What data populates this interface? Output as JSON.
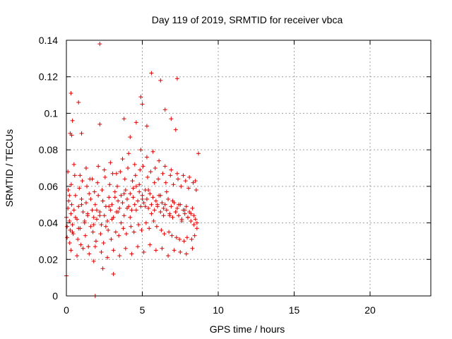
{
  "chart_data": {
    "type": "scatter",
    "title": "Day 119 of 2019, SRMTID for receiver vbca",
    "xlabel": "GPS time / hours",
    "ylabel": "SRMTID / TECUs",
    "xlim": [
      0,
      24
    ],
    "ylim": [
      0,
      0.14
    ],
    "xticks": [
      0,
      5,
      10,
      15,
      20
    ],
    "yticks": [
      0,
      0.02,
      0.04,
      0.06,
      0.08,
      0.1,
      0.12,
      0.14
    ],
    "xtick_labels": [
      "0",
      "5",
      "10",
      "15",
      "20"
    ],
    "ytick_labels": [
      "0",
      "0.02",
      "0.04",
      "0.06",
      "0.08",
      "0.1",
      "0.12",
      "0.14"
    ],
    "grid": true,
    "marker": "+",
    "color": "#e00000",
    "series": [
      {
        "name": "SRMTID",
        "x": [
          0.0,
          0.05,
          0.1,
          0.15,
          0.2,
          0.25,
          0.3,
          0.35,
          0.4,
          0.5,
          0.6,
          0.7,
          0.8,
          0.9,
          1.0,
          1.1,
          1.2,
          1.3,
          1.4,
          1.5,
          1.6,
          1.7,
          1.8,
          1.9,
          2.0,
          2.1,
          2.2,
          2.3,
          2.4,
          2.5,
          2.6,
          2.7,
          2.8,
          2.9,
          3.0,
          3.1,
          3.2,
          3.3,
          3.4,
          3.5,
          3.6,
          3.7,
          3.8,
          3.9,
          4.0,
          4.1,
          4.2,
          4.3,
          4.4,
          4.5,
          4.6,
          4.7,
          4.8,
          4.9,
          5.0,
          5.1,
          5.2,
          5.3,
          5.4,
          5.5,
          5.6,
          5.7,
          5.8,
          5.9,
          6.0,
          6.1,
          6.2,
          6.3,
          6.4,
          6.5,
          6.6,
          6.7,
          6.8,
          6.9,
          7.0,
          7.1,
          7.2,
          7.3,
          7.4,
          7.5,
          7.6,
          7.7,
          7.8,
          7.9,
          8.0,
          8.1,
          8.2,
          8.3,
          8.4,
          8.5,
          8.6,
          0.05,
          0.12,
          0.22,
          0.32,
          0.45,
          0.55,
          0.75,
          0.85,
          0.95,
          1.05,
          1.25,
          1.35,
          1.45,
          1.55,
          1.75,
          1.85,
          1.95,
          2.05,
          2.25,
          2.35,
          2.45,
          2.55,
          2.75,
          2.85,
          2.95,
          3.05,
          3.25,
          3.35,
          3.45,
          3.55,
          3.75,
          3.85,
          3.95,
          4.05,
          4.25,
          4.35,
          4.45,
          4.55,
          4.75,
          4.85,
          4.95,
          5.05,
          5.25,
          5.35,
          5.45,
          5.55,
          5.75,
          5.85,
          5.95,
          6.05,
          6.25,
          6.35,
          6.45,
          6.55,
          6.75,
          6.85,
          6.95,
          7.05,
          7.25,
          7.35,
          7.45,
          7.55,
          7.75,
          7.85,
          7.95,
          8.05,
          8.25,
          8.35,
          8.45,
          8.55,
          0.1,
          0.3,
          0.5,
          0.7,
          0.9,
          1.1,
          1.3,
          1.5,
          1.7,
          1.9,
          2.1,
          2.3,
          2.5,
          2.7,
          2.9,
          3.1,
          3.3,
          3.5,
          3.7,
          3.9,
          4.1,
          4.3,
          4.5,
          4.7,
          4.9,
          5.1,
          5.3,
          5.5,
          5.7,
          5.9,
          6.1,
          6.3,
          6.5,
          6.7,
          6.9,
          7.1,
          7.3,
          7.5,
          7.7,
          7.9,
          8.1,
          8.3,
          8.5,
          0.2,
          0.4,
          0.6,
          0.8,
          1.0,
          1.2,
          1.4,
          1.6,
          1.8,
          2.0,
          2.2,
          2.4,
          2.6,
          2.8,
          3.0,
          3.2,
          3.4,
          3.6,
          3.8,
          4.0,
          4.2,
          4.4,
          4.6,
          4.8,
          5.0,
          5.2,
          5.4,
          5.6,
          5.8,
          6.0,
          6.2,
          6.4,
          6.6,
          6.8,
          7.0,
          7.2,
          7.4,
          7.6,
          7.8,
          8.0,
          8.2,
          8.4,
          8.6,
          0.0,
          0.3,
          0.4,
          0.8,
          2.2,
          2.2,
          1.9,
          5.6,
          7.3,
          6.2,
          6.5,
          4.9,
          5.0,
          5.3,
          3.8,
          4.6,
          0.25,
          0.35,
          1.0,
          6.9,
          7.2,
          8.7,
          3.1,
          2.4,
          1.8,
          4.2
        ],
        "y": [
          0.043,
          0.038,
          0.048,
          0.052,
          0.041,
          0.036,
          0.045,
          0.05,
          0.039,
          0.047,
          0.055,
          0.042,
          0.049,
          0.037,
          0.053,
          0.046,
          0.04,
          0.051,
          0.044,
          0.056,
          0.038,
          0.047,
          0.043,
          0.05,
          0.042,
          0.055,
          0.046,
          0.039,
          0.052,
          0.044,
          0.049,
          0.041,
          0.054,
          0.047,
          0.05,
          0.043,
          0.057,
          0.046,
          0.052,
          0.048,
          0.055,
          0.051,
          0.044,
          0.058,
          0.053,
          0.049,
          0.056,
          0.047,
          0.054,
          0.05,
          0.06,
          0.052,
          0.057,
          0.049,
          0.055,
          0.051,
          0.058,
          0.053,
          0.048,
          0.056,
          0.05,
          0.054,
          0.047,
          0.052,
          0.049,
          0.055,
          0.046,
          0.051,
          0.044,
          0.05,
          0.047,
          0.053,
          0.045,
          0.049,
          0.043,
          0.051,
          0.046,
          0.048,
          0.044,
          0.05,
          0.042,
          0.047,
          0.045,
          0.049,
          0.043,
          0.046,
          0.041,
          0.048,
          0.044,
          0.042,
          0.04,
          0.032,
          0.058,
          0.029,
          0.061,
          0.034,
          0.066,
          0.031,
          0.059,
          0.028,
          0.063,
          0.033,
          0.06,
          0.027,
          0.064,
          0.035,
          0.057,
          0.03,
          0.062,
          0.034,
          0.058,
          0.029,
          0.065,
          0.036,
          0.061,
          0.031,
          0.067,
          0.035,
          0.06,
          0.033,
          0.068,
          0.037,
          0.064,
          0.034,
          0.07,
          0.038,
          0.063,
          0.035,
          0.066,
          0.039,
          0.069,
          0.036,
          0.071,
          0.04,
          0.065,
          0.037,
          0.068,
          0.041,
          0.07,
          0.038,
          0.064,
          0.036,
          0.067,
          0.034,
          0.062,
          0.035,
          0.066,
          0.033,
          0.061,
          0.032,
          0.064,
          0.031,
          0.06,
          0.03,
          0.063,
          0.032,
          0.059,
          0.031,
          0.062,
          0.033,
          0.058,
          0.068,
          0.025,
          0.072,
          0.022,
          0.066,
          0.026,
          0.07,
          0.023,
          0.064,
          0.027,
          0.071,
          0.024,
          0.069,
          0.021,
          0.073,
          0.025,
          0.067,
          0.022,
          0.075,
          0.026,
          0.078,
          0.023,
          0.072,
          0.027,
          0.08,
          0.024,
          0.076,
          0.028,
          0.079,
          0.025,
          0.074,
          0.026,
          0.071,
          0.022,
          0.069,
          0.025,
          0.067,
          0.024,
          0.066,
          0.023,
          0.065,
          0.026,
          0.063,
          0.055,
          0.035,
          0.043,
          0.037,
          0.05,
          0.041,
          0.045,
          0.053,
          0.039,
          0.047,
          0.044,
          0.052,
          0.038,
          0.049,
          0.042,
          0.054,
          0.046,
          0.04,
          0.056,
          0.048,
          0.043,
          0.059,
          0.047,
          0.061,
          0.053,
          0.049,
          0.058,
          0.045,
          0.062,
          0.05,
          0.055,
          0.048,
          0.057,
          0.044,
          0.052,
          0.046,
          0.05,
          0.041,
          0.047,
          0.043,
          0.045,
          0.039,
          0.037,
          0.011,
          0.111,
          0.096,
          0.106,
          0.138,
          0.094,
          0.0,
          0.122,
          0.119,
          0.118,
          0.102,
          0.109,
          0.105,
          0.093,
          0.097,
          0.095,
          0.089,
          0.088,
          0.089,
          0.097,
          0.091,
          0.078,
          0.012,
          0.015,
          0.019,
          0.087
        ]
      }
    ]
  }
}
